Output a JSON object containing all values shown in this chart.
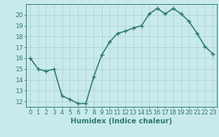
{
  "x": [
    0,
    1,
    2,
    3,
    4,
    5,
    6,
    7,
    8,
    9,
    10,
    11,
    12,
    13,
    14,
    15,
    16,
    17,
    18,
    19,
    20,
    21,
    22,
    23
  ],
  "y": [
    16,
    15,
    14.8,
    15,
    12.5,
    12.2,
    11.8,
    11.8,
    14.3,
    16.3,
    17.5,
    18.3,
    18.5,
    18.8,
    19.0,
    20.1,
    20.6,
    20.1,
    20.6,
    20.1,
    19.4,
    18.3,
    17.1,
    16.4
  ],
  "line_color": "#2d7a6e",
  "bg_color": "#c8eaea",
  "grid_color": "#aacece",
  "xlabel": "Humidex (Indice chaleur)",
  "ylim": [
    11.5,
    21.0
  ],
  "xlim": [
    -0.5,
    23.5
  ],
  "yticks": [
    12,
    13,
    14,
    15,
    16,
    17,
    18,
    19,
    20
  ],
  "xticks": [
    0,
    1,
    2,
    3,
    4,
    5,
    6,
    7,
    8,
    9,
    10,
    11,
    12,
    13,
    14,
    15,
    16,
    17,
    18,
    19,
    20,
    21,
    22,
    23
  ],
  "marker": "+",
  "linewidth": 1.2,
  "markersize": 4,
  "xlabel_fontsize": 7.5,
  "tick_fontsize": 6.5
}
